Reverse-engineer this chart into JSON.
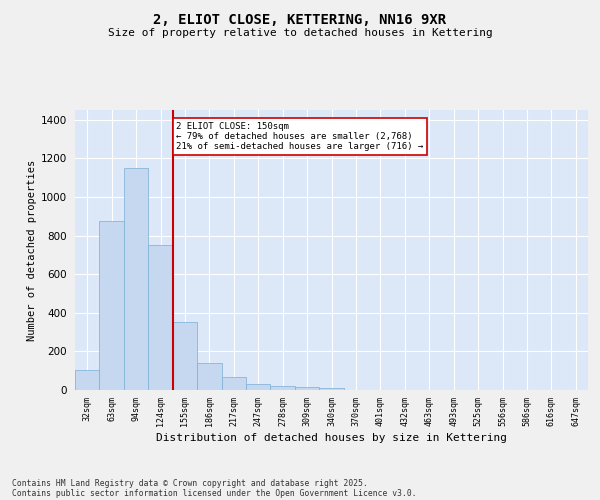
{
  "title": "2, ELIOT CLOSE, KETTERING, NN16 9XR",
  "subtitle": "Size of property relative to detached houses in Kettering",
  "xlabel": "Distribution of detached houses by size in Kettering",
  "ylabel": "Number of detached properties",
  "categories": [
    "32sqm",
    "63sqm",
    "94sqm",
    "124sqm",
    "155sqm",
    "186sqm",
    "217sqm",
    "247sqm",
    "278sqm",
    "309sqm",
    "340sqm",
    "370sqm",
    "401sqm",
    "432sqm",
    "463sqm",
    "493sqm",
    "525sqm",
    "556sqm",
    "586sqm",
    "616sqm",
    "647sqm"
  ],
  "values": [
    105,
    875,
    1150,
    750,
    350,
    140,
    65,
    30,
    20,
    13,
    10,
    0,
    0,
    0,
    0,
    0,
    0,
    0,
    0,
    0,
    0
  ],
  "bar_color": "#c5d8f0",
  "bar_edge_color": "#7aafd4",
  "marker_bar_index": 4,
  "marker_color": "#cc0000",
  "annotation_text": "2 ELIOT CLOSE: 150sqm\n← 79% of detached houses are smaller (2,768)\n21% of semi-detached houses are larger (716) →",
  "annotation_box_edgecolor": "#cc0000",
  "plot_bg_color": "#dce8f8",
  "grid_color": "#ffffff",
  "fig_bg_color": "#f0f0f0",
  "ylim": [
    0,
    1450
  ],
  "yticks": [
    0,
    200,
    400,
    600,
    800,
    1000,
    1200,
    1400
  ],
  "footer_line1": "Contains HM Land Registry data © Crown copyright and database right 2025.",
  "footer_line2": "Contains public sector information licensed under the Open Government Licence v3.0."
}
